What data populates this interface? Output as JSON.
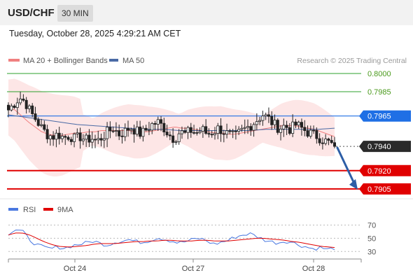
{
  "header": {
    "symbol": "USD/CHF",
    "timeframe": "30 MIN",
    "timestamp": "Tuesday, October 28, 2025 4:29:21 AM CET"
  },
  "legend": {
    "ma20_bb": "MA 20 + Bollinger Bands",
    "ma50": "MA 50",
    "credit": "Research © 2025 Trading Central",
    "rsi": "RSI",
    "rsi_ma": "9MA"
  },
  "colors": {
    "candle_up": "#ffffff",
    "candle_down": "#222222",
    "ma20": "#f08080",
    "bollinger_fill": "#fde2e2",
    "ma50": "#4a6aa5",
    "resistance": "#2ca02c",
    "pivot": "#1f6fe5",
    "support": "#e00000",
    "arrow": "#2d5ea6",
    "rsi": "#4a78e0",
    "rsi_ma": "#e00000"
  },
  "chart_data": [
    {
      "type": "candlestick",
      "interval": "30 MIN",
      "x_ticks": [
        "Oct 24",
        "Oct 27",
        "Oct 28"
      ],
      "ylim": [
        0.7898,
        0.8004
      ],
      "current_price": 0.794,
      "levels": [
        {
          "value": 0.8,
          "label": "0.8000",
          "kind": "resistance"
        },
        {
          "value": 0.7985,
          "label": "0.7985",
          "kind": "resistance"
        },
        {
          "value": 0.7965,
          "label": "0.7965",
          "kind": "pivot"
        },
        {
          "value": 0.794,
          "label": "0.7940",
          "kind": "last"
        },
        {
          "value": 0.792,
          "label": "0.7920",
          "kind": "support"
        },
        {
          "value": 0.7905,
          "label": "0.7905",
          "kind": "support"
        }
      ],
      "projection": {
        "from": 0.794,
        "to": 0.7905,
        "direction": "down"
      },
      "close_path": [
        0.797,
        0.7975,
        0.798,
        0.7977,
        0.7968,
        0.7962,
        0.7955,
        0.795,
        0.7948,
        0.795,
        0.7947,
        0.7949,
        0.7946,
        0.7948,
        0.7945,
        0.7947,
        0.7944,
        0.7948,
        0.7952,
        0.7955,
        0.795,
        0.7952,
        0.7956,
        0.7953,
        0.795,
        0.7954,
        0.7958,
        0.796,
        0.7956,
        0.795,
        0.7946,
        0.7952,
        0.795,
        0.7953,
        0.7951,
        0.7954,
        0.795,
        0.7952,
        0.7955,
        0.7952,
        0.7949,
        0.7948,
        0.7952,
        0.7955,
        0.7958,
        0.7962,
        0.7966,
        0.7963,
        0.7958,
        0.7955,
        0.7957,
        0.7954,
        0.7958,
        0.7955,
        0.7952,
        0.795,
        0.7948,
        0.7945,
        0.7943,
        0.794
      ],
      "ma20_path": [
        0.7972,
        0.797,
        0.7965,
        0.796,
        0.7956,
        0.7952,
        0.795,
        0.7949,
        0.7949,
        0.795,
        0.7951,
        0.7951,
        0.7952,
        0.7952,
        0.7953,
        0.7953,
        0.7953,
        0.7953,
        0.7953,
        0.7952,
        0.7952,
        0.7952,
        0.7953,
        0.7954,
        0.7955,
        0.7956,
        0.7955,
        0.7955,
        0.7954,
        0.7953,
        0.7952,
        0.7951,
        0.7951,
        0.795,
        0.795,
        0.7951,
        0.7952,
        0.7953,
        0.7954,
        0.7955,
        0.7956,
        0.7957,
        0.7957,
        0.7957,
        0.7956,
        0.7955,
        0.7954,
        0.7952,
        0.795,
        0.7948
      ],
      "ma50_path": [
        0.7966,
        0.7964,
        0.7962,
        0.796,
        0.7958,
        0.7957,
        0.7956,
        0.7955,
        0.7954,
        0.7954,
        0.7953,
        0.7953,
        0.7953,
        0.7953,
        0.7953,
        0.7954,
        0.7954,
        0.7954,
        0.7954,
        0.7955
      ]
    },
    {
      "type": "line",
      "title": "RSI",
      "ylim": [
        25,
        78
      ],
      "y_ticks": [
        70,
        50,
        30
      ],
      "series": [
        {
          "name": "RSI",
          "values": [
            57,
            63,
            60,
            48,
            40,
            36,
            34,
            37,
            35,
            39,
            41,
            43,
            46,
            42,
            40,
            44,
            46,
            48,
            45,
            44,
            47,
            51,
            49,
            46,
            43,
            45,
            48,
            50,
            46,
            41,
            44,
            47,
            52,
            55,
            57,
            53,
            48,
            45,
            43,
            46,
            44,
            40,
            37,
            34,
            36,
            33,
            35
          ]
        },
        {
          "name": "9MA",
          "values": [
            55,
            58,
            58,
            55,
            50,
            45,
            41,
            38,
            37,
            37,
            38,
            39,
            41,
            42,
            42,
            42,
            43,
            44,
            45,
            45,
            46,
            46,
            47,
            47,
            46,
            46,
            46,
            47,
            47,
            46,
            46,
            46,
            47,
            48,
            49,
            50,
            50,
            49,
            48,
            47,
            45,
            44,
            42,
            40,
            38,
            37,
            36
          ]
        }
      ]
    }
  ]
}
